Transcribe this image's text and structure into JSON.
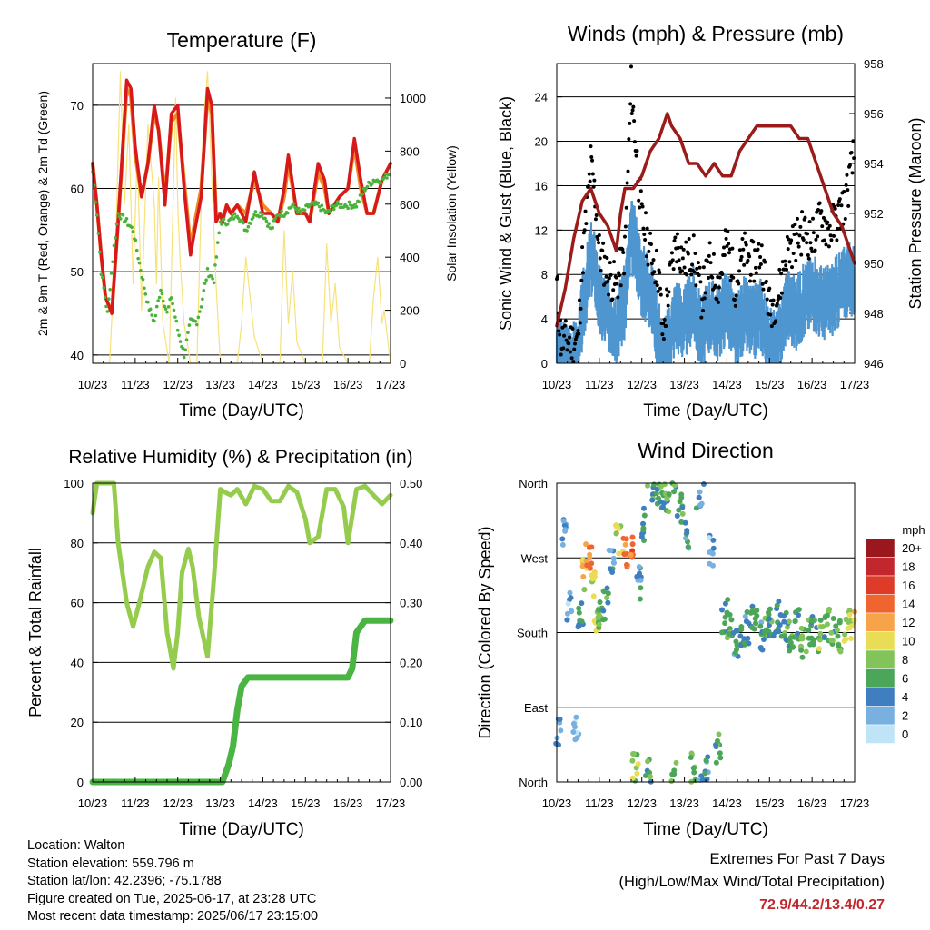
{
  "colors": {
    "temp2m": "#d7191c",
    "temp9m": "#f08a24",
    "dewpoint": "#4ab23a",
    "solar": "#f7e27a",
    "wind": "#4f96d0",
    "gust": "#000000",
    "pressure": "#9b1b1b",
    "rh": "#95cc4d",
    "precip": "#4bb544",
    "grid": "#000000",
    "extremes_text": "#c1272d"
  },
  "x_tick_labels": [
    "10/23",
    "11/23",
    "12/23",
    "13/23",
    "14/23",
    "15/23",
    "16/23",
    "17/23"
  ],
  "x_axis_label": "Time (Day/UTC)",
  "info": {
    "location": "Location: Walton",
    "elevation": "Station elevation: 559.796 m",
    "latlon": "Station lat/lon: 42.2396; -75.1788",
    "created": "Figure created on Tue, 2025-06-17, at 23:28 UTC",
    "recent": "Most recent data timestamp: 2025/06/17 23:15:00"
  },
  "extremes": {
    "title": "Extremes For Past 7 Days",
    "subtitle": "(High/Low/Max Wind/Total Precipitation)",
    "values": "72.9/44.2/13.4/0.27"
  },
  "chart_data": [
    {
      "id": "temperature",
      "type": "line",
      "title": "Temperature (F)",
      "ylabel": "2m & 9m T (Red, Orange) & 2m Td (Green)",
      "y2label": "Solar Insolation (Yellow)",
      "xlim": [
        10,
        17
      ],
      "ylim": [
        39,
        75
      ],
      "y_ticks": [
        40,
        50,
        60,
        70
      ],
      "y2lim": [
        0,
        1130
      ],
      "y2_ticks": [
        0,
        200,
        400,
        600,
        800,
        1000
      ],
      "series": [
        {
          "key": "t2m",
          "x": [
            10.0,
            10.1,
            10.2,
            10.3,
            10.45,
            10.6,
            10.8,
            10.9,
            11.0,
            11.15,
            11.3,
            11.45,
            11.55,
            11.7,
            11.85,
            12.0,
            12.15,
            12.3,
            12.4,
            12.55,
            12.7,
            12.8,
            12.9,
            13.0,
            13.05,
            13.15,
            13.25,
            13.4,
            13.6,
            13.8,
            14.0,
            14.2,
            14.35,
            14.5,
            14.6,
            14.8,
            15.0,
            15.1,
            15.3,
            15.45,
            15.55,
            15.8,
            16.0,
            16.15,
            16.3,
            16.45,
            16.6,
            16.8,
            17.0
          ],
          "y": [
            63,
            58,
            52,
            47,
            45,
            56,
            73,
            72,
            65,
            59,
            63,
            70,
            67,
            58,
            69,
            70,
            60,
            52,
            55,
            59,
            72,
            70,
            56,
            57,
            56,
            58,
            57,
            58,
            56,
            62,
            57,
            57,
            56,
            60,
            64,
            57,
            57,
            56,
            63,
            61,
            57,
            59,
            60,
            66,
            61,
            57,
            57,
            61,
            63
          ]
        },
        {
          "key": "t9m",
          "x": [
            10.0,
            10.1,
            10.2,
            10.3,
            10.45,
            10.6,
            10.8,
            10.9,
            11.0,
            11.15,
            11.3,
            11.45,
            11.55,
            11.7,
            11.85,
            12.0,
            12.15,
            12.3,
            12.4,
            12.55,
            12.7,
            12.8,
            12.9,
            13.0,
            13.05,
            13.15,
            13.25,
            13.4,
            13.6,
            13.8,
            14.0,
            14.2,
            14.35,
            14.5,
            14.6,
            14.8,
            15.0,
            15.1,
            15.3,
            15.45,
            15.55,
            15.8,
            16.0,
            16.15,
            16.3,
            16.45,
            16.6,
            16.8,
            17.0
          ],
          "y": [
            63,
            58,
            52,
            47,
            45,
            56,
            72,
            71,
            64,
            59,
            63,
            69,
            67,
            59,
            68,
            69,
            61,
            53,
            56,
            60,
            71,
            69,
            57,
            57,
            56,
            58,
            57,
            58,
            57,
            61,
            58,
            57,
            56,
            59,
            63,
            57,
            57,
            56,
            62,
            60,
            57,
            59,
            60,
            65,
            60,
            57,
            57,
            61,
            63
          ]
        },
        {
          "key": "td",
          "x": [
            10.0,
            10.1,
            10.2,
            10.35,
            10.5,
            10.6,
            10.8,
            10.95,
            11.1,
            11.3,
            11.45,
            11.6,
            11.75,
            11.85,
            12.0,
            12.15,
            12.3,
            12.45,
            12.55,
            12.7,
            12.85,
            13.0,
            13.2,
            13.4,
            13.6,
            13.8,
            14.0,
            14.2,
            14.35,
            14.5,
            14.7,
            14.9,
            15.1,
            15.3,
            15.5,
            15.7,
            15.9,
            16.0,
            16.2,
            16.4,
            16.6,
            16.8,
            17.0
          ],
          "y": [
            62,
            57,
            50,
            45,
            53,
            57,
            56,
            55,
            51,
            46,
            44,
            48,
            45,
            47,
            43,
            40,
            44,
            44,
            46,
            50,
            49,
            56,
            56,
            57,
            55,
            57,
            57,
            55,
            57,
            57,
            58,
            57,
            58,
            58,
            57,
            58,
            58,
            58,
            58,
            60,
            61,
            61,
            62
          ]
        },
        {
          "key": "solar",
          "x": [
            10.0,
            10.4,
            10.55,
            10.65,
            10.75,
            10.85,
            10.95,
            11.05,
            11.15,
            11.3,
            11.45,
            11.5,
            11.55,
            11.65,
            11.8,
            11.95,
            12.0,
            12.05,
            12.15,
            12.3,
            12.45,
            12.6,
            12.7,
            12.8,
            12.9,
            13.0,
            13.4,
            13.5,
            13.6,
            13.8,
            14.0,
            14.4,
            14.5,
            14.6,
            14.7,
            14.8,
            15.0,
            15.4,
            15.5,
            15.6,
            15.7,
            15.8,
            16.0,
            16.5,
            16.6,
            16.7,
            16.8,
            16.85,
            17.0
          ],
          "y": [
            0,
            0,
            500,
            1100,
            600,
            900,
            300,
            800,
            200,
            900,
            600,
            300,
            700,
            150,
            0,
            1000,
            600,
            400,
            150,
            0,
            0,
            900,
            1100,
            700,
            300,
            0,
            0,
            150,
            400,
            100,
            0,
            0,
            500,
            150,
            350,
            80,
            0,
            0,
            450,
            150,
            300,
            60,
            0,
            0,
            250,
            400,
            150,
            200,
            0
          ]
        }
      ]
    },
    {
      "id": "winds",
      "type": "scatter",
      "title": "Winds (mph) & Pressure (mb)",
      "ylabel": "Sonic Wind & Gust (Blue, Black)",
      "y2label": "Station Pressure (Maroon)",
      "xlim": [
        10,
        17
      ],
      "ylim": [
        0,
        27
      ],
      "y_ticks": [
        0,
        4,
        8,
        12,
        16,
        20,
        24
      ],
      "y2lim": [
        946,
        958
      ],
      "y2_ticks": [
        946,
        948,
        950,
        952,
        954,
        956,
        958
      ],
      "series": [
        {
          "key": "wind",
          "x": [
            10.0,
            10.1,
            10.3,
            10.5,
            10.6,
            10.8,
            10.9,
            11.0,
            11.2,
            11.4,
            11.6,
            11.75,
            11.85,
            12.0,
            12.2,
            12.4,
            12.5,
            12.6,
            12.8,
            13.0,
            13.2,
            13.4,
            13.6,
            13.8,
            14.0,
            14.2,
            14.4,
            14.6,
            14.8,
            15.0,
            15.2,
            15.4,
            15.6,
            15.8,
            16.0,
            16.2,
            16.4,
            16.6,
            16.8,
            17.0
          ],
          "y": [
            2,
            1,
            1,
            1,
            5,
            10,
            9,
            6,
            5,
            4,
            6,
            12,
            11,
            8,
            7,
            3,
            1,
            2,
            5,
            4,
            6,
            3,
            5,
            4,
            6,
            3,
            5,
            4,
            5,
            2,
            2,
            6,
            5,
            6,
            7,
            6,
            6,
            7,
            8,
            8
          ]
        },
        {
          "key": "gust",
          "x": [
            10.0,
            10.1,
            10.3,
            10.5,
            10.6,
            10.8,
            10.9,
            11.0,
            11.2,
            11.4,
            11.6,
            11.75,
            11.85,
            12.0,
            12.2,
            12.4,
            12.5,
            12.6,
            12.8,
            13.0,
            13.2,
            13.4,
            13.6,
            13.8,
            14.0,
            14.2,
            14.4,
            14.6,
            14.8,
            15.0,
            15.2,
            15.4,
            15.6,
            15.8,
            16.0,
            16.2,
            16.4,
            16.6,
            16.8,
            17.0
          ],
          "y": [
            7,
            2,
            2,
            2,
            9,
            18,
            15,
            10,
            8,
            7,
            10,
            25,
            20,
            13,
            10,
            8,
            2,
            6,
            11,
            9,
            10,
            6,
            9,
            7,
            11,
            7,
            10,
            9,
            10,
            5,
            6,
            10,
            11,
            12,
            11,
            13,
            12,
            13,
            15,
            19
          ]
        },
        {
          "key": "pressure",
          "x": [
            10.0,
            10.2,
            10.4,
            10.6,
            10.8,
            10.9,
            11.0,
            11.2,
            11.4,
            11.5,
            11.6,
            11.8,
            12.0,
            12.2,
            12.4,
            12.6,
            12.7,
            12.9,
            13.1,
            13.3,
            13.5,
            13.7,
            13.9,
            14.1,
            14.3,
            14.5,
            14.7,
            14.9,
            15.1,
            15.3,
            15.5,
            15.7,
            15.9,
            16.1,
            16.3,
            16.5,
            16.7,
            16.9,
            17.0
          ],
          "y": [
            947.5,
            949,
            951,
            952.5,
            953,
            952.5,
            952,
            951.5,
            950.5,
            952,
            953,
            953,
            953.5,
            954.5,
            955,
            956,
            955.5,
            955,
            954,
            954,
            953.5,
            954,
            953.5,
            953.5,
            954.5,
            955,
            955.5,
            955.5,
            955.5,
            955.5,
            955.5,
            955,
            955,
            954,
            953,
            952,
            951.5,
            950.5,
            950
          ]
        }
      ]
    },
    {
      "id": "humidity",
      "type": "line",
      "title": "Relative Humidity (%) & Precipitation (in)",
      "ylabel": "Percent & Total Rainfall",
      "xlim": [
        10,
        17
      ],
      "ylim": [
        0,
        100
      ],
      "y_ticks": [
        0,
        20,
        40,
        60,
        80,
        100
      ],
      "y2lim": [
        0,
        0.5
      ],
      "y2_ticks": [
        "0.00",
        "0.10",
        "0.20",
        "0.30",
        "0.40",
        "0.50"
      ],
      "series": [
        {
          "key": "rh",
          "x": [
            10.0,
            10.1,
            10.2,
            10.5,
            10.6,
            10.7,
            10.8,
            10.95,
            11.1,
            11.3,
            11.45,
            11.6,
            11.75,
            11.9,
            12.0,
            12.1,
            12.25,
            12.35,
            12.5,
            12.7,
            12.85,
            13.0,
            13.1,
            13.25,
            13.4,
            13.6,
            13.8,
            14.0,
            14.2,
            14.4,
            14.6,
            14.8,
            15.0,
            15.1,
            15.3,
            15.5,
            15.7,
            15.9,
            16.0,
            16.2,
            16.4,
            16.6,
            16.8,
            17.0
          ],
          "y": [
            90,
            100,
            100,
            100,
            80,
            70,
            60,
            52,
            60,
            72,
            77,
            75,
            50,
            38,
            50,
            70,
            78,
            72,
            55,
            42,
            68,
            98,
            97,
            96,
            98,
            93,
            99,
            98,
            94,
            94,
            99,
            97,
            88,
            80,
            82,
            98,
            98,
            92,
            80,
            98,
            99,
            96,
            93,
            96
          ]
        },
        {
          "key": "precip",
          "x": [
            10.0,
            13.05,
            13.2,
            13.3,
            13.4,
            13.5,
            13.6,
            13.65,
            14.0,
            15.0,
            16.0,
            16.1,
            16.2,
            16.3,
            16.4,
            17.0
          ],
          "y": [
            0,
            0,
            0.03,
            0.06,
            0.12,
            0.16,
            0.17,
            0.175,
            0.175,
            0.175,
            0.175,
            0.19,
            0.25,
            0.26,
            0.27,
            0.27
          ]
        }
      ]
    },
    {
      "id": "direction",
      "type": "scatter",
      "title": "Wind Direction",
      "ylabel": "Direction (Colored By Speed)",
      "xlim": [
        10,
        17
      ],
      "ylim": [
        0,
        360
      ],
      "y_tick_labels": [
        "North",
        "East",
        "South",
        "West",
        "North"
      ],
      "colorbar_unit": "mph",
      "colorbar_labels": [
        "20+",
        "18",
        "16",
        "14",
        "12",
        "10",
        "8",
        "6",
        "4",
        "2",
        "0"
      ],
      "colorbar_colors": [
        "#99171d",
        "#c1272d",
        "#de3b29",
        "#f0652f",
        "#f7a34a",
        "#e8dd55",
        "#82c35a",
        "#4ca65a",
        "#3f7fc0",
        "#78b1e0",
        "#bfe3f7"
      ],
      "series": [
        {
          "key": "dir_points",
          "x": [
            10.05,
            10.15,
            10.3,
            10.45,
            10.55,
            10.65,
            10.75,
            10.85,
            10.95,
            11.05,
            11.15,
            11.3,
            11.45,
            11.6,
            11.75,
            11.85,
            11.95,
            12.05,
            12.15,
            12.3,
            12.45,
            12.6,
            12.75,
            12.9,
            13.05,
            13.2,
            13.35,
            13.5,
            13.65,
            13.8,
            13.95,
            14.05,
            14.2,
            14.35,
            14.5,
            14.65,
            14.8,
            14.95,
            15.05,
            15.2,
            15.35,
            15.5,
            15.65,
            15.8,
            15.95,
            16.05,
            16.2,
            16.35,
            16.5,
            16.65,
            16.8,
            16.95
          ],
          "y": [
            60,
            300,
            210,
            70,
            200,
            250,
            270,
            240,
            200,
            190,
            215,
            260,
            290,
            275,
            285,
            20,
            240,
            310,
            10,
            340,
            350,
            345,
            5,
            330,
            300,
            20,
            350,
            15,
            280,
            40,
            200,
            185,
            170,
            180,
            185,
            200,
            175,
            190,
            180,
            200,
            185,
            175,
            190,
            170,
            180,
            185,
            175,
            190,
            180,
            175,
            185,
            190
          ],
          "speed": [
            2,
            3,
            2,
            1,
            4,
            10,
            12,
            9,
            8,
            6,
            5,
            3,
            10,
            12,
            14,
            8,
            4,
            4,
            6,
            6,
            5,
            6,
            6,
            5,
            4,
            6,
            3,
            4,
            2,
            5,
            4,
            6,
            4,
            5,
            4,
            5,
            4,
            6,
            5,
            4,
            5,
            6,
            5,
            7,
            6,
            5,
            7,
            6,
            6,
            7,
            8,
            9
          ]
        }
      ]
    }
  ]
}
